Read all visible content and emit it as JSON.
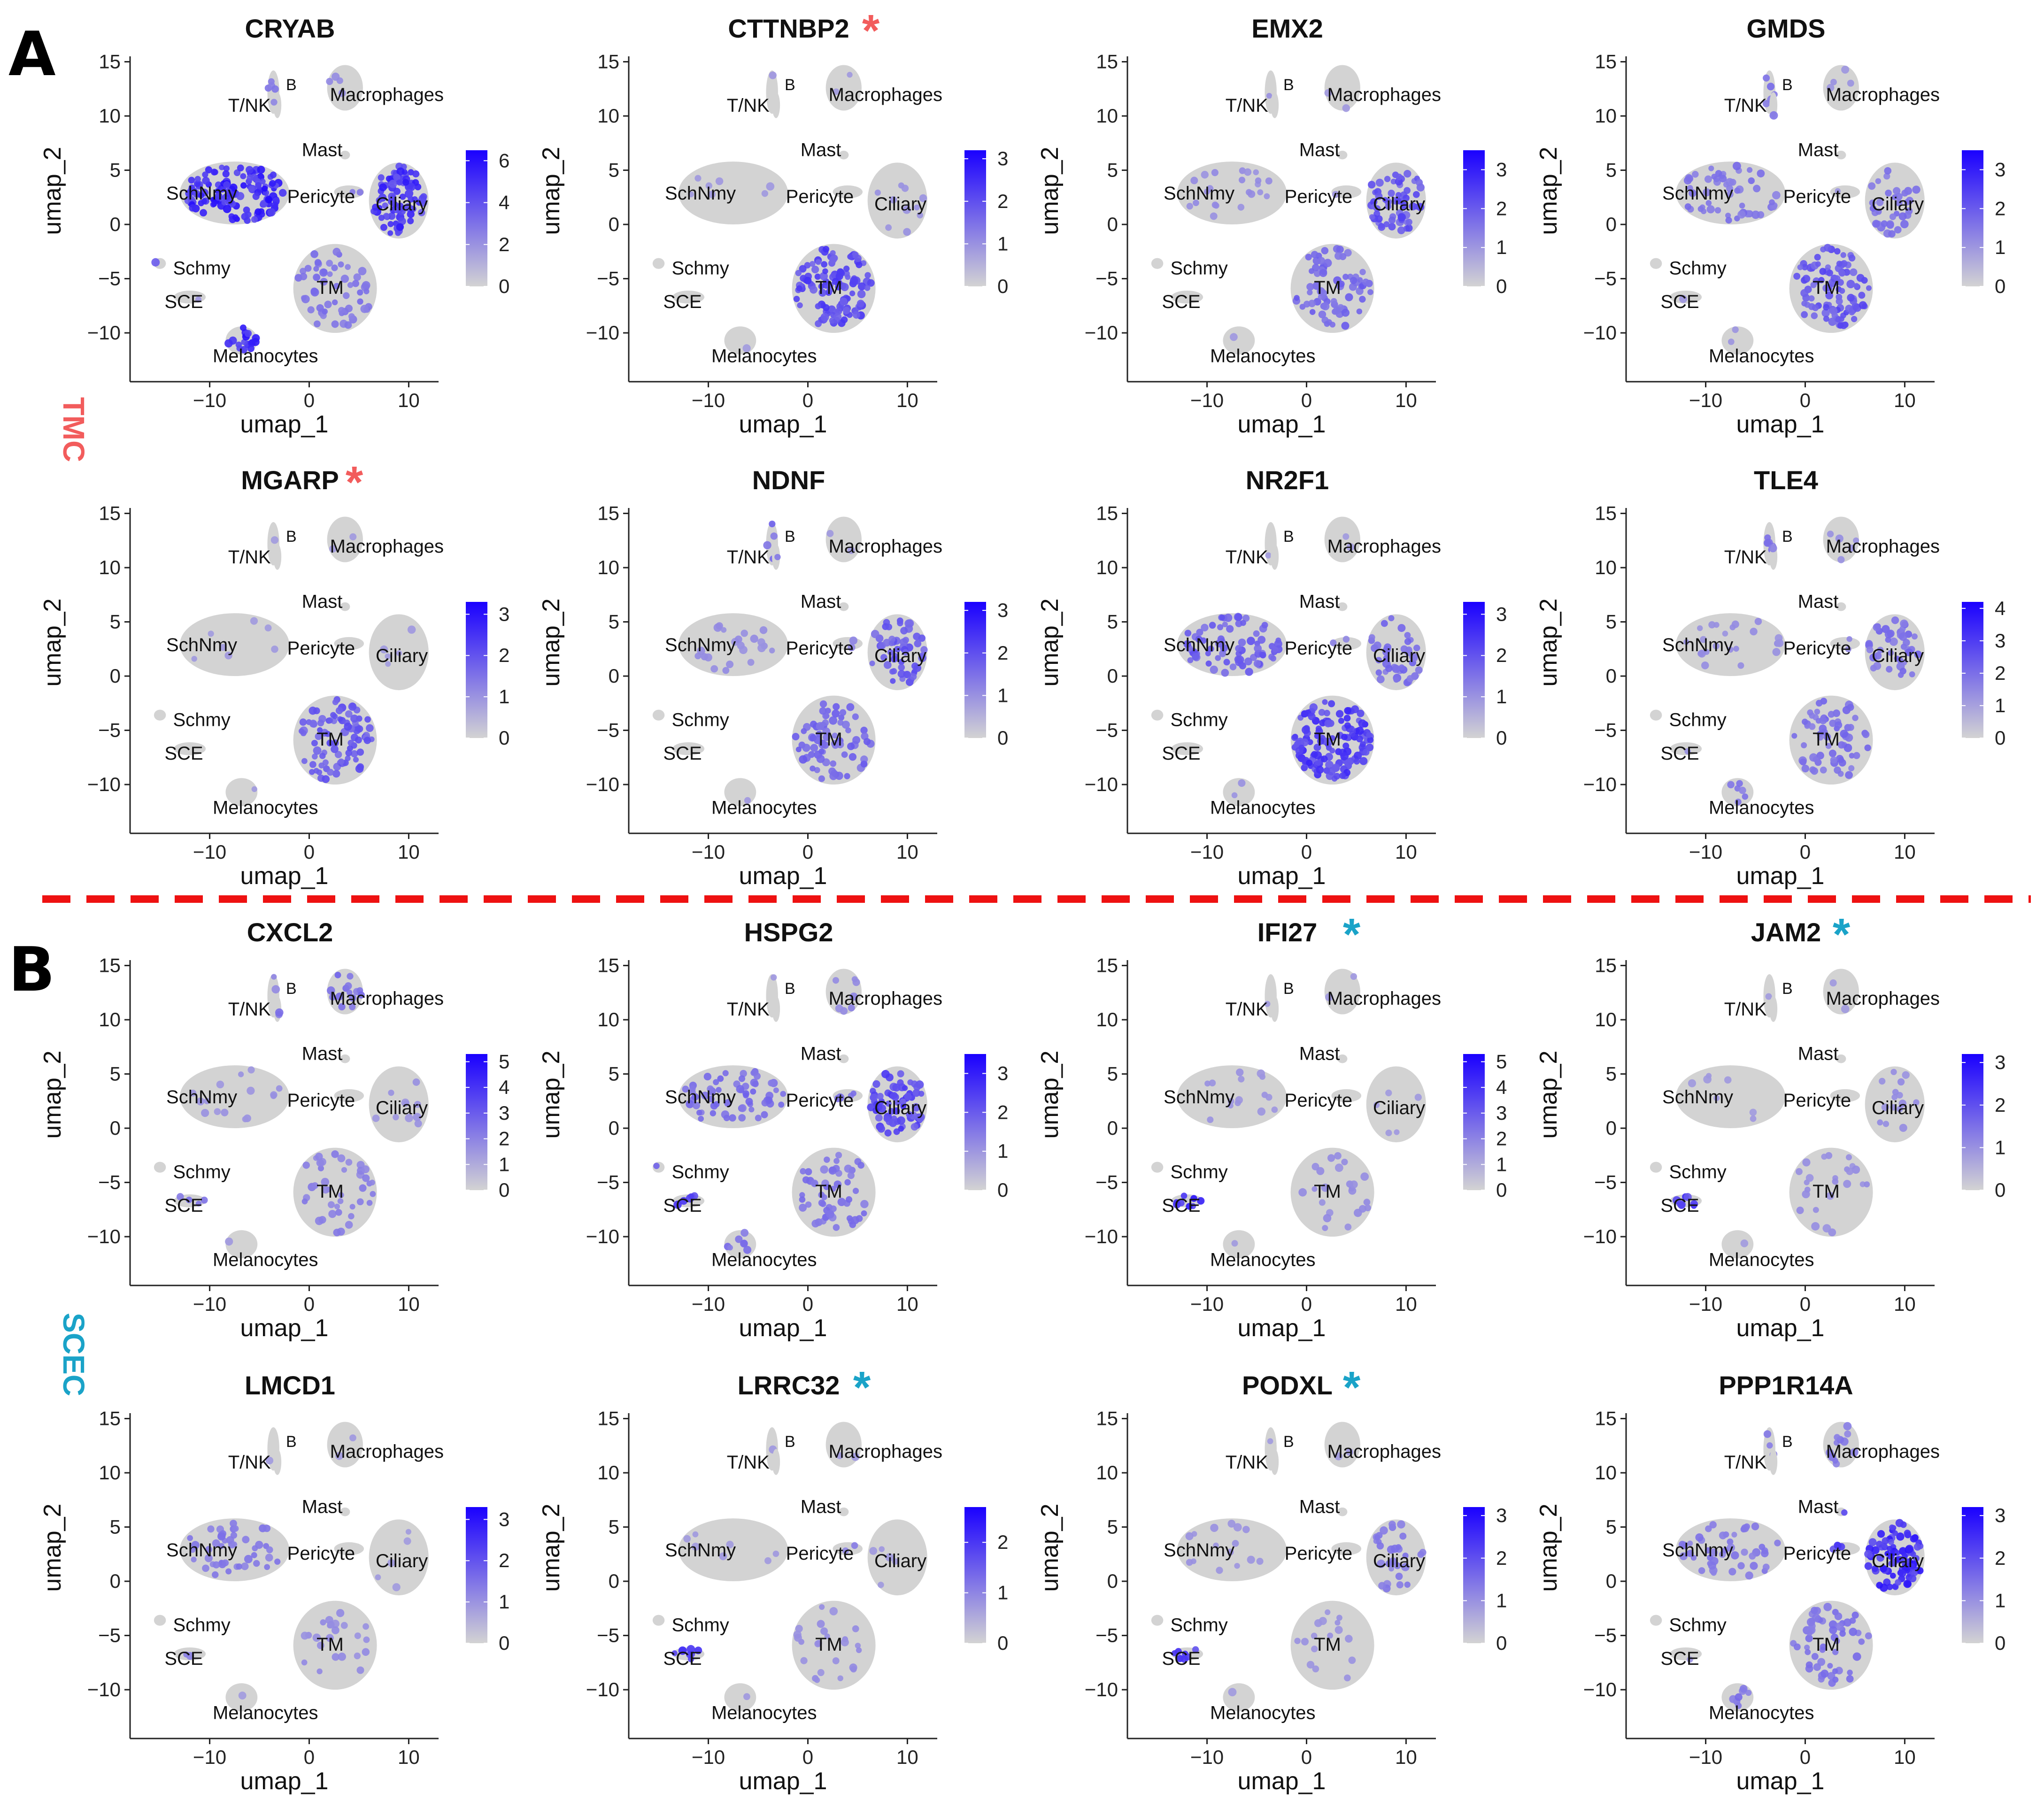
{
  "figure": {
    "panel_labels": [
      "A",
      "B"
    ],
    "group_labels": [
      "TMC",
      "SCEC"
    ],
    "colors": {
      "tmc": "#f25c5c",
      "scec": "#1aa3c8",
      "divider": "#ee1111",
      "low": "#d3d3d3",
      "high": "#1a00ff"
    }
  },
  "axes": {
    "xlabel": "umap_1",
    "ylabel": "umap_2",
    "xlim": [
      -18,
      13
    ],
    "ylim": [
      -14.5,
      15.5
    ],
    "xticks": [
      -10,
      0,
      10
    ],
    "yticks": [
      15,
      10,
      5,
      0,
      -5,
      -10
    ],
    "xtick_labels": [
      "−10",
      "0",
      "10"
    ],
    "ytick_labels": [
      "15",
      "10",
      "5",
      "0",
      "−5",
      "−10"
    ]
  },
  "clusters": [
    {
      "name": "B",
      "cx": -3.6,
      "cy": 12.2,
      "rx": 0.6,
      "ry": 2.0,
      "lx": -1.8,
      "ly": 13,
      "fs": 34
    },
    {
      "name": "T/NK",
      "cx": -3.2,
      "cy": 11.0,
      "rx": 0.4,
      "ry": 1.2,
      "lx": -6,
      "ly": 11,
      "fs": 40
    },
    {
      "name": "Macrophages",
      "cx": 3.6,
      "cy": 12.6,
      "rx": 1.8,
      "ry": 2.1,
      "lx": 7.8,
      "ly": 12,
      "fs": 40
    },
    {
      "name": "Mast",
      "cx": 3.6,
      "cy": 6.4,
      "rx": 0.5,
      "ry": 0.4,
      "lx": 1.3,
      "ly": 6.9,
      "fs": 40
    },
    {
      "name": "SchNmy",
      "cx": -7.5,
      "cy": 2.9,
      "rx": 5.5,
      "ry": 2.9,
      "lx": -10.8,
      "ly": 2.9,
      "fs": 40
    },
    {
      "name": "Pericyte",
      "cx": 4.0,
      "cy": 3.0,
      "rx": 1.5,
      "ry": 0.6,
      "lx": 1.2,
      "ly": 2.6,
      "fs": 40
    },
    {
      "name": "Ciliary",
      "cx": 9.0,
      "cy": 2.2,
      "rx": 3.0,
      "ry": 3.5,
      "lx": 9.3,
      "ly": 1.9,
      "fs": 40
    },
    {
      "name": "Schmy",
      "cx": -15.0,
      "cy": -3.6,
      "rx": 0.6,
      "ry": 0.5,
      "lx": -10.8,
      "ly": -4.0,
      "fs": 40
    },
    {
      "name": "SCE",
      "cx": -12.0,
      "cy": -6.7,
      "rx": 1.6,
      "ry": 0.6,
      "lx": -12.6,
      "ly": -7.1,
      "fs": 40
    },
    {
      "name": "TM",
      "cx": 2.6,
      "cy": -5.9,
      "rx": 4.2,
      "ry": 4.1,
      "lx": 2.1,
      "ly": -5.8,
      "fs": 40
    },
    {
      "name": "Melanocytes",
      "cx": -6.8,
      "cy": -10.7,
      "rx": 1.6,
      "ry": 1.3,
      "lx": -4.4,
      "ly": -12.1,
      "fs": 40
    }
  ],
  "chart_data": [
    {
      "type": "scatter",
      "gene": "CRYAB",
      "title": "CRYAB",
      "star": null,
      "legend_max": 6.5,
      "legend_ticks": [
        0,
        2,
        4,
        6
      ],
      "expression": {
        "B": 0.35,
        "T/NK": 0.25,
        "Macrophages": 0.15,
        "Mast": 0.1,
        "SchNmy": 0.95,
        "Pericyte": 0.3,
        "Ciliary": 0.85,
        "Schmy": 0.6,
        "SCE": 0.1,
        "TM": 0.35,
        "Melanocytes": 0.9
      }
    },
    {
      "type": "scatter",
      "gene": "CTTNBP2",
      "title": "CTTNBP2",
      "star": "tmc",
      "legend_max": 3.2,
      "legend_ticks": [
        0,
        1,
        2,
        3
      ],
      "expression": {
        "B": 0.1,
        "T/NK": 0.05,
        "Macrophages": 0.05,
        "Mast": 0.05,
        "SchNmy": 0.05,
        "Pericyte": 0.05,
        "Ciliary": 0.1,
        "Schmy": 0.05,
        "SCE": 0.05,
        "TM": 0.7,
        "Melanocytes": 0.05
      }
    },
    {
      "type": "scatter",
      "gene": "EMX2",
      "title": "EMX2",
      "star": null,
      "legend_max": 3.5,
      "legend_ticks": [
        0,
        1,
        2,
        3
      ],
      "expression": {
        "B": 0.1,
        "T/NK": 0.05,
        "Macrophages": 0.05,
        "Mast": 0.05,
        "SchNmy": 0.15,
        "Pericyte": 0.1,
        "Ciliary": 0.6,
        "Schmy": 0.05,
        "SCE": 0.05,
        "TM": 0.45,
        "Melanocytes": 0.05
      }
    },
    {
      "type": "scatter",
      "gene": "GMDS",
      "title": "GMDS",
      "star": null,
      "legend_max": 3.5,
      "legend_ticks": [
        0,
        1,
        2,
        3
      ],
      "expression": {
        "B": 0.4,
        "T/NK": 0.3,
        "Macrophages": 0.1,
        "Mast": 0.05,
        "SchNmy": 0.35,
        "Pericyte": 0.1,
        "Ciliary": 0.35,
        "Schmy": 0.1,
        "SCE": 0.1,
        "TM": 0.6,
        "Melanocytes": 0.1
      }
    },
    {
      "type": "scatter",
      "gene": "MGARP",
      "title": "MGARP",
      "star": "tmc",
      "legend_max": 3.3,
      "legend_ticks": [
        0,
        1,
        2,
        3
      ],
      "expression": {
        "B": 0.05,
        "T/NK": 0.05,
        "Macrophages": 0.05,
        "Mast": 0.05,
        "SchNmy": 0.05,
        "Pericyte": 0.05,
        "Ciliary": 0.05,
        "Schmy": 0.05,
        "SCE": 0.05,
        "TM": 0.55,
        "Melanocytes": 0.05
      }
    },
    {
      "type": "scatter",
      "gene": "NDNF",
      "title": "NDNF",
      "star": null,
      "legend_max": 3.2,
      "legend_ticks": [
        0,
        1,
        2,
        3
      ],
      "expression": {
        "B": 0.4,
        "T/NK": 0.3,
        "Macrophages": 0.05,
        "Mast": 0.05,
        "SchNmy": 0.15,
        "Pericyte": 0.2,
        "Ciliary": 0.55,
        "Schmy": 0.05,
        "SCE": 0.05,
        "TM": 0.45,
        "Melanocytes": 0.05
      }
    },
    {
      "type": "scatter",
      "gene": "NR2F1",
      "title": "NR2F1",
      "star": null,
      "legend_max": 3.3,
      "legend_ticks": [
        0,
        1,
        2,
        3
      ],
      "expression": {
        "B": 0.05,
        "T/NK": 0.05,
        "Macrophages": 0.05,
        "Mast": 0.05,
        "SchNmy": 0.5,
        "Pericyte": 0.2,
        "Ciliary": 0.4,
        "Schmy": 0.2,
        "SCE": 0.05,
        "TM": 0.8,
        "Melanocytes": 0.1
      }
    },
    {
      "type": "scatter",
      "gene": "TLE4",
      "title": "TLE4",
      "star": null,
      "legend_max": 4.2,
      "legend_ticks": [
        0,
        1,
        2,
        3,
        4
      ],
      "expression": {
        "B": 0.4,
        "T/NK": 0.3,
        "Macrophages": 0.15,
        "Mast": 0.05,
        "SchNmy": 0.15,
        "Pericyte": 0.2,
        "Ciliary": 0.4,
        "Schmy": 0.1,
        "SCE": 0.1,
        "TM": 0.4,
        "Melanocytes": 0.3
      }
    },
    {
      "type": "scatter",
      "gene": "CXCL2",
      "title": "CXCL2",
      "star": null,
      "legend_max": 5.3,
      "legend_ticks": [
        0,
        1,
        2,
        3,
        4,
        5
      ],
      "expression": {
        "B": 0.2,
        "T/NK": 0.35,
        "Macrophages": 0.4,
        "Mast": 0.05,
        "SchNmy": 0.1,
        "Pericyte": 0.05,
        "Ciliary": 0.1,
        "Schmy": 0.05,
        "SCE": 0.45,
        "TM": 0.25,
        "Melanocytes": 0.05
      }
    },
    {
      "type": "scatter",
      "gene": "HSPG2",
      "title": "HSPG2",
      "star": null,
      "legend_max": 3.5,
      "legend_ticks": [
        0,
        1,
        2,
        3
      ],
      "expression": {
        "B": 0.05,
        "T/NK": 0.05,
        "Macrophages": 0.2,
        "Mast": 0.05,
        "SchNmy": 0.4,
        "Pericyte": 0.45,
        "Ciliary": 0.7,
        "Schmy": 0.4,
        "SCE": 0.7,
        "TM": 0.35,
        "Melanocytes": 0.35
      }
    },
    {
      "type": "scatter",
      "gene": "IFI27",
      "title": "IFI27",
      "star": "scec",
      "legend_max": 5.3,
      "legend_ticks": [
        0,
        1,
        2,
        3,
        4,
        5
      ],
      "expression": {
        "B": 0.05,
        "T/NK": 0.05,
        "Macrophages": 0.05,
        "Mast": 0.05,
        "SchNmy": 0.1,
        "Pericyte": 0.05,
        "Ciliary": 0.05,
        "Schmy": 0.05,
        "SCE": 0.95,
        "TM": 0.15,
        "Melanocytes": 0.05
      }
    },
    {
      "type": "scatter",
      "gene": "JAM2",
      "title": "JAM2",
      "star": "scec",
      "legend_max": 3.2,
      "legend_ticks": [
        0,
        1,
        2,
        3
      ],
      "expression": {
        "B": 0.05,
        "T/NK": 0.05,
        "Macrophages": 0.05,
        "Mast": 0.05,
        "SchNmy": 0.05,
        "Pericyte": 0.05,
        "Ciliary": 0.15,
        "Schmy": 0.05,
        "SCE": 0.85,
        "TM": 0.15,
        "Melanocytes": 0.05
      }
    },
    {
      "type": "scatter",
      "gene": "LMCD1",
      "title": "LMCD1",
      "star": null,
      "legend_max": 3.3,
      "legend_ticks": [
        0,
        1,
        2,
        3
      ],
      "expression": {
        "B": 0.05,
        "T/NK": 0.05,
        "Macrophages": 0.05,
        "Mast": 0.05,
        "SchNmy": 0.3,
        "Pericyte": 0.05,
        "Ciliary": 0.05,
        "Schmy": 0.1,
        "SCE": 0.25,
        "TM": 0.15,
        "Melanocytes": 0.05
      }
    },
    {
      "type": "scatter",
      "gene": "LRRC32",
      "title": "LRRC32",
      "star": "scec",
      "legend_max": 2.7,
      "legend_ticks": [
        0,
        1,
        2
      ],
      "expression": {
        "B": 0.05,
        "T/NK": 0.05,
        "Macrophages": 0.05,
        "Mast": 0.05,
        "SchNmy": 0.05,
        "Pericyte": 0.25,
        "Ciliary": 0.05,
        "Schmy": 0.05,
        "SCE": 0.8,
        "TM": 0.15,
        "Melanocytes": 0.05
      }
    },
    {
      "type": "scatter",
      "gene": "PODXL",
      "title": "PODXL",
      "star": "scec",
      "legend_max": 3.2,
      "legend_ticks": [
        0,
        1,
        2,
        3
      ],
      "expression": {
        "B": 0.05,
        "T/NK": 0.05,
        "Macrophages": 0.05,
        "Mast": 0.05,
        "SchNmy": 0.1,
        "Pericyte": 0.05,
        "Ciliary": 0.3,
        "Schmy": 0.05,
        "SCE": 0.85,
        "TM": 0.1,
        "Melanocytes": 0.05
      }
    },
    {
      "type": "scatter",
      "gene": "PPP1R14A",
      "title": "PPP1R14A",
      "star": null,
      "legend_max": 3.2,
      "legend_ticks": [
        0,
        1,
        2,
        3
      ],
      "expression": {
        "B": 0.35,
        "T/NK": 0.1,
        "Macrophages": 0.3,
        "Mast": 0.6,
        "SchNmy": 0.3,
        "Pericyte": 0.8,
        "Ciliary": 0.95,
        "Schmy": 0.1,
        "SCE": 0.1,
        "TM": 0.35,
        "Melanocytes": 0.35
      }
    }
  ]
}
